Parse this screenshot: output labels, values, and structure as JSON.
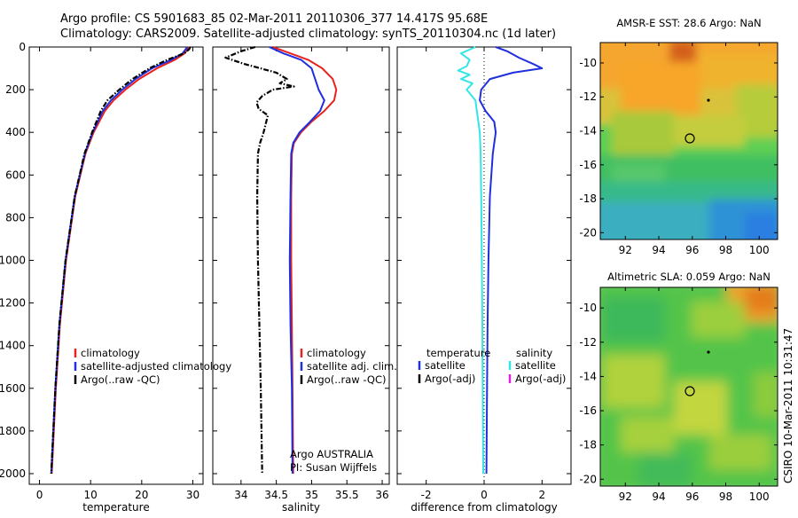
{
  "header": {
    "title_line1": "Argo profile: CS 5901683_85 02-Mar-2011 20110306_377 14.417S 95.68E",
    "title_line2": "Climatology: CARS2009. Satellite-adjusted climatology: synTS_20110304.nc (1d later)"
  },
  "colors": {
    "climatology": "#e8231f",
    "satellite": "#1f2fe0",
    "argo": "#000000",
    "salinity_satellite": "#33e6e6",
    "salinity_argo": "#e020e0"
  },
  "chart_data": [
    {
      "type": "line",
      "name": "temperature-profile",
      "xlabel": "temperature",
      "ylabel": "",
      "xlim": [
        -2,
        32
      ],
      "ylim": [
        2050,
        0
      ],
      "x_ticks": [
        0,
        10,
        20,
        30
      ],
      "y_ticks": [
        0,
        200,
        400,
        600,
        800,
        1000,
        1200,
        1400,
        1600,
        1800,
        2000
      ],
      "legend": [
        "climatology",
        "satellite-adjusted climatology",
        "Argo(..raw -QC)"
      ],
      "series": [
        {
          "name": "climatology",
          "depth": [
            0,
            10,
            30,
            60,
            100,
            150,
            200,
            250,
            300,
            400,
            500,
            700,
            1000,
            1300,
            1600,
            2000
          ],
          "values": [
            29.3,
            29.0,
            28.4,
            26.5,
            23.0,
            19.5,
            16.8,
            14.5,
            12.8,
            10.6,
            9.0,
            7.0,
            5.2,
            4.0,
            3.2,
            2.4
          ]
        },
        {
          "name": "satellite-adjusted climatology",
          "depth": [
            0,
            10,
            30,
            60,
            100,
            150,
            200,
            250,
            300,
            400,
            500,
            700,
            1000,
            1300,
            1600,
            2000
          ],
          "values": [
            28.9,
            28.6,
            28.0,
            25.8,
            22.0,
            18.8,
            16.2,
            14.0,
            12.4,
            10.4,
            8.9,
            6.9,
            5.1,
            3.9,
            3.1,
            2.3
          ]
        },
        {
          "name": "Argo(..raw -QC)",
          "depth": [
            0,
            10,
            30,
            60,
            100,
            150,
            200,
            250,
            300,
            400,
            500,
            700,
            1000,
            1300,
            1600,
            2000
          ],
          "values": [
            29.5,
            29.3,
            28.3,
            25.0,
            21.5,
            18.2,
            15.6,
            13.3,
            12.0,
            10.3,
            8.8,
            6.9,
            5.1,
            3.9,
            3.1,
            2.3
          ]
        }
      ]
    },
    {
      "type": "line",
      "name": "salinity-profile",
      "xlabel": "salinity",
      "xlim": [
        33.6,
        36.1
      ],
      "ylim": [
        2050,
        0
      ],
      "x_ticks": [
        34,
        34.5,
        35,
        35.5,
        36
      ],
      "legend": [
        "climatology",
        "satellite adj. clim.",
        "Argo(..raw -QC)"
      ],
      "annotation": [
        "Argo AUSTRALIA",
        "PI: Susan Wijffels"
      ],
      "series": [
        {
          "name": "climatology",
          "depth": [
            0,
            30,
            60,
            100,
            150,
            200,
            250,
            300,
            350,
            400,
            450,
            500,
            700,
            1000,
            1300,
            1600,
            2000
          ],
          "values": [
            34.45,
            34.7,
            34.95,
            35.15,
            35.3,
            35.35,
            35.32,
            35.18,
            35.0,
            34.85,
            34.75,
            34.72,
            34.71,
            34.71,
            34.72,
            34.73,
            34.74
          ]
        },
        {
          "name": "satellite adj. clim.",
          "depth": [
            0,
            30,
            60,
            100,
            150,
            200,
            250,
            300,
            350,
            400,
            450,
            500,
            700,
            1000,
            1300,
            1600,
            2000
          ],
          "values": [
            34.4,
            34.6,
            34.85,
            35.0,
            35.05,
            35.1,
            35.18,
            35.12,
            34.98,
            34.83,
            34.74,
            34.71,
            34.7,
            34.69,
            34.7,
            34.72,
            34.73
          ]
        },
        {
          "name": "Argo(..raw -QC)",
          "depth": [
            0,
            20,
            50,
            80,
            120,
            150,
            170,
            185,
            200,
            230,
            260,
            290,
            320,
            360,
            400,
            450,
            500,
            700,
            1000,
            1300,
            1600,
            2000
          ],
          "values": [
            34.2,
            34.0,
            33.78,
            34.05,
            34.5,
            34.65,
            34.55,
            34.75,
            34.45,
            34.3,
            34.22,
            34.25,
            34.38,
            34.35,
            34.32,
            34.27,
            34.24,
            34.23,
            34.24,
            34.26,
            34.28,
            34.3
          ]
        }
      ]
    },
    {
      "type": "line",
      "name": "difference-profile",
      "xlabel": "difference from climatology",
      "xlim": [
        -3,
        3
      ],
      "ylim": [
        2050,
        0
      ],
      "x_ticks": [
        -2,
        0,
        2
      ],
      "legend_left_title": "temperature",
      "legend_right_title": "salinity",
      "legend_left": [
        "satellite",
        "Argo(-adj)"
      ],
      "legend_right": [
        "satellite",
        "Argo(-adj)"
      ],
      "series": [
        {
          "name": "temperature satellite",
          "depth": [
            0,
            20,
            50,
            80,
            100,
            120,
            150,
            200,
            250,
            300,
            350,
            400,
            500,
            700,
            1000,
            1300,
            1600,
            2000
          ],
          "values": [
            0.4,
            0.8,
            1.2,
            1.7,
            2.0,
            1.0,
            0.2,
            -0.1,
            -0.15,
            0.05,
            0.35,
            0.4,
            0.3,
            0.2,
            0.15,
            0.12,
            0.1,
            0.08
          ]
        },
        {
          "name": "salinity satellite",
          "depth": [
            0,
            30,
            60,
            90,
            110,
            130,
            150,
            170,
            200,
            250,
            300,
            350,
            400,
            500,
            700,
            1000,
            1300,
            1600,
            2000
          ],
          "values": [
            -0.3,
            -0.8,
            -0.5,
            -0.6,
            -0.9,
            -0.5,
            -0.8,
            -0.4,
            -0.6,
            -0.3,
            -0.25,
            -0.2,
            -0.15,
            -0.12,
            -0.1,
            -0.08,
            -0.06,
            -0.05,
            -0.03
          ]
        }
      ]
    },
    {
      "type": "heatmap",
      "name": "amsr-sst-map",
      "title": "AMSR-E SST: 28.6 Argo: NaN",
      "xlim": [
        90.5,
        101.1
      ],
      "ylim": [
        -20.4,
        -8.8
      ],
      "x_ticks": [
        92,
        94,
        96,
        98,
        100
      ],
      "y_ticks": [
        -10,
        -12,
        -14,
        -16,
        -18,
        -20
      ],
      "profile_position": [
        95.68,
        -14.417
      ]
    },
    {
      "type": "heatmap",
      "name": "altimetric-sla-map",
      "title": "Altimetric SLA: 0.059 Argo: NaN",
      "xlim": [
        90.5,
        101.1
      ],
      "ylim": [
        -20.4,
        -8.8
      ],
      "x_ticks": [
        92,
        94,
        96,
        98,
        100
      ],
      "y_ticks": [
        -10,
        -12,
        -14,
        -16,
        -18,
        -20
      ],
      "profile_position": [
        95.68,
        -14.417
      ]
    }
  ],
  "footer": {
    "credit": "CSIRO 10-Mar-2011 10:31:47"
  }
}
